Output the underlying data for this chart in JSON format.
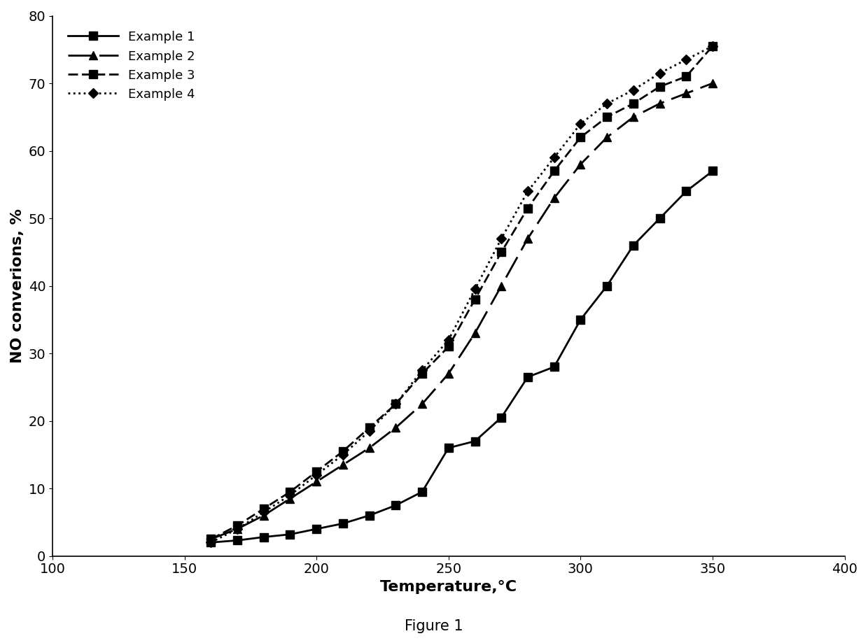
{
  "title": "",
  "xlabel": "Temperature,°C",
  "ylabel": "NO converions, %",
  "xlim": [
    100,
    400
  ],
  "ylim": [
    0,
    80
  ],
  "xticks": [
    100,
    150,
    200,
    250,
    300,
    350,
    400
  ],
  "yticks": [
    0,
    10,
    20,
    30,
    40,
    50,
    60,
    70,
    80
  ],
  "figure_caption": "Figure 1",
  "background_color": "#ffffff",
  "line_color": "#000000",
  "series": [
    {
      "label": "Example 1",
      "linestyle": "solid",
      "marker": "s",
      "markersize": 8,
      "linewidth": 2.0,
      "x": [
        160,
        170,
        180,
        190,
        200,
        210,
        220,
        230,
        240,
        250,
        260,
        270,
        280,
        290,
        300,
        310,
        320,
        330,
        340,
        350
      ],
      "y": [
        2.0,
        2.3,
        2.8,
        3.2,
        4.0,
        4.8,
        6.0,
        7.5,
        9.5,
        16.0,
        17.0,
        20.5,
        26.5,
        28.0,
        35.0,
        40.0,
        46.0,
        50.0,
        54.0,
        57.0
      ]
    },
    {
      "label": "Example 2",
      "linestyle": "long_dash",
      "marker": "^",
      "markersize": 8,
      "linewidth": 2.0,
      "x": [
        160,
        170,
        180,
        190,
        200,
        210,
        220,
        230,
        240,
        250,
        260,
        270,
        280,
        290,
        300,
        310,
        320,
        330,
        340,
        350
      ],
      "y": [
        2.5,
        4.0,
        6.0,
        8.5,
        11.0,
        13.5,
        16.0,
        19.0,
        22.5,
        27.0,
        33.0,
        40.0,
        47.0,
        53.0,
        58.0,
        62.0,
        65.0,
        67.0,
        68.5,
        70.0
      ]
    },
    {
      "label": "Example 3",
      "linestyle": "short_dash",
      "marker": "s",
      "markersize": 8,
      "linewidth": 2.0,
      "x": [
        160,
        170,
        180,
        190,
        200,
        210,
        220,
        230,
        240,
        250,
        260,
        270,
        280,
        290,
        300,
        310,
        320,
        330,
        340,
        350
      ],
      "y": [
        2.5,
        4.5,
        7.0,
        9.5,
        12.5,
        15.5,
        19.0,
        22.5,
        27.0,
        31.0,
        38.0,
        45.0,
        51.5,
        57.0,
        62.0,
        65.0,
        67.0,
        69.5,
        71.0,
        75.5
      ]
    },
    {
      "label": "Example 4",
      "linestyle": "dotted",
      "marker": "D",
      "markersize": 7,
      "linewidth": 2.0,
      "x": [
        160,
        170,
        180,
        190,
        200,
        210,
        220,
        230,
        240,
        250,
        260,
        270,
        280,
        290,
        300,
        310,
        320,
        330,
        340,
        350
      ],
      "y": [
        2.0,
        4.0,
        6.5,
        9.0,
        12.0,
        15.0,
        18.5,
        22.5,
        27.5,
        32.0,
        39.5,
        47.0,
        54.0,
        59.0,
        64.0,
        67.0,
        69.0,
        71.5,
        73.5,
        75.5
      ]
    }
  ]
}
